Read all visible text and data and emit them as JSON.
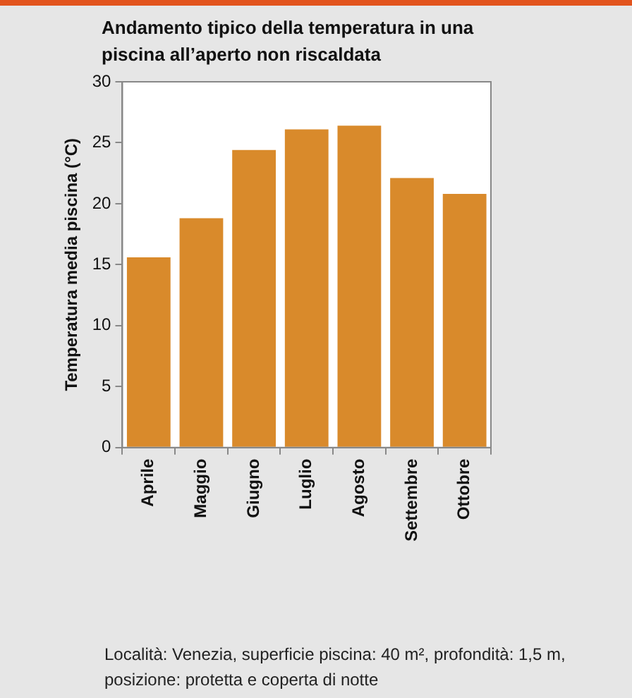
{
  "chart_data": {
    "type": "bar",
    "title": "Andamento tipico della temperatura in una piscina all’aperto non riscaldata",
    "ylabel": "Temperatura media piscina (°C)",
    "categories": [
      "Aprile",
      "Maggio",
      "Giugno",
      "Luglio",
      "Agosto",
      "Settembre",
      "Ottobre"
    ],
    "values": [
      15.6,
      18.8,
      24.4,
      26.1,
      26.4,
      22.1,
      20.8
    ],
    "color": "#d98a2b",
    "ylim": [
      0,
      30
    ],
    "yticks": [
      0,
      5,
      10,
      15,
      20,
      25,
      30
    ],
    "grid": false,
    "annotations": [
      "Località: Venezia, superficie piscina: 40 m², profondità: 1,5 m, posizione: protetta e coperta di notte"
    ]
  }
}
